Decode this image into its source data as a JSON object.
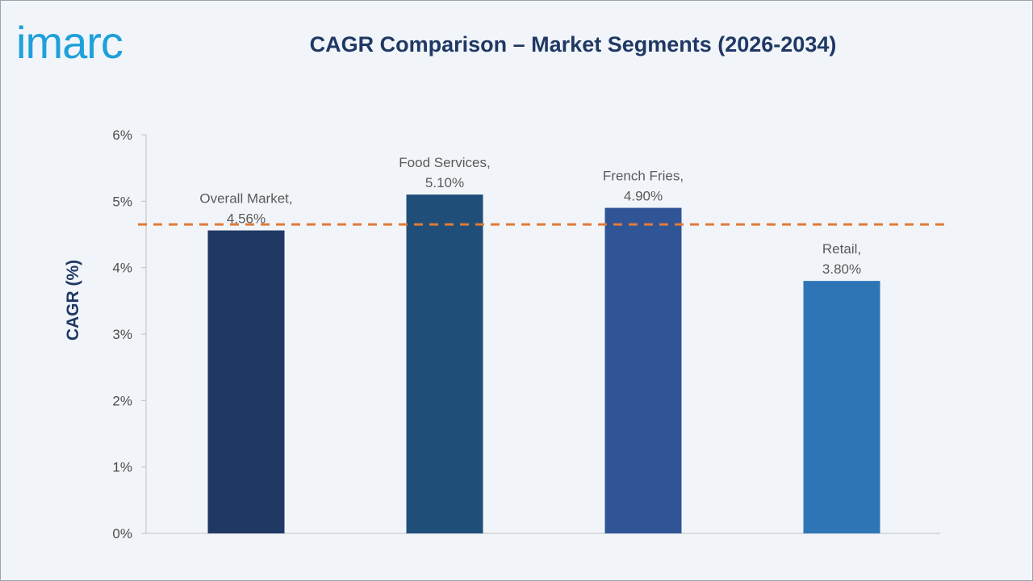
{
  "brand": {
    "logo_text": "imarc",
    "logo_color": "#1ea0dc"
  },
  "chart_data": {
    "type": "bar",
    "title": "CAGR Comparison – Market Segments (2026-2034)",
    "xlabel": "",
    "ylabel": "CAGR (%)",
    "ylim": [
      0,
      6
    ],
    "yticks": [
      0,
      1,
      2,
      3,
      4,
      5,
      6
    ],
    "ytick_labels": [
      "0%",
      "1%",
      "2%",
      "3%",
      "4%",
      "5%",
      "6%"
    ],
    "categories": [
      "Overall Market",
      "Food Services",
      "French Fries",
      "Retail"
    ],
    "values": [
      4.56,
      5.1,
      4.9,
      3.8
    ],
    "data_labels": [
      [
        "Overall Market,",
        "4.56%"
      ],
      [
        "Food Services,",
        "5.10%"
      ],
      [
        "French Fries,",
        "4.90%"
      ],
      [
        "Retail,",
        "3.80%"
      ]
    ],
    "colors": [
      "#203864",
      "#1f4e79",
      "#2f5597",
      "#2e75b6"
    ],
    "reference_line": {
      "value": 4.65,
      "style": "dashed",
      "color": "#e07b39"
    },
    "grid": false,
    "legend": "none"
  }
}
